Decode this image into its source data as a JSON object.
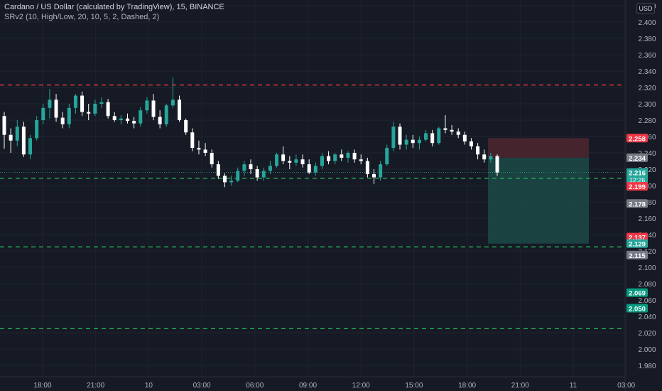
{
  "header": {
    "title": "Cardano / US Dollar (calculated by TradingView), 15, BINANCE",
    "indicator": "SRv2 (10, High/Low, 20, 10, 5, 2, Dashed, 2)"
  },
  "currency_button": "USD",
  "colors": {
    "background": "#161a25",
    "up": "#26a69a",
    "down": "#ffffff",
    "resistance": "#f23645",
    "support": "#22c55e",
    "stop_zone": "#4a2630",
    "target_zone": "#1b4a47"
  },
  "chart_data": {
    "type": "candlestick",
    "symbol": "ADAUSD",
    "ylim": [
      1.97,
      2.43
    ],
    "y_ticks": [
      "2.420",
      "2.400",
      "2.380",
      "2.360",
      "2.340",
      "2.320",
      "2.300",
      "2.280",
      "2.260",
      "2.240",
      "2.220",
      "2.200",
      "2.180",
      "2.160",
      "2.140",
      "2.120",
      "2.100",
      "2.080",
      "2.060",
      "2.040",
      "2.020",
      "2.000",
      "1.980"
    ],
    "x_ticks": [
      "18:00",
      "21:00",
      "10",
      "03:00",
      "06:00",
      "09:00",
      "12:00",
      "15:00",
      "18:00",
      "21:00",
      "11",
      "03:00"
    ],
    "horizontal_levels": [
      {
        "price": 2.323,
        "style": "dashed",
        "color": "#f23645"
      },
      {
        "price": 2.209,
        "style": "dashed",
        "color": "#22c55e"
      },
      {
        "price": 2.125,
        "style": "dashed",
        "color": "#22c55e"
      },
      {
        "price": 2.025,
        "style": "dashed",
        "color": "#22c55e"
      }
    ],
    "position": {
      "entry": 2.234,
      "stop": 2.258,
      "target": 2.129
    },
    "price_labels": [
      {
        "text": "2.258",
        "price": 2.258,
        "color": "#f23645"
      },
      {
        "text": "2.234",
        "price": 2.234,
        "color": "#787b86"
      },
      {
        "text": "2.216",
        "price": 2.216,
        "color": "#26a69a",
        "sub": "12:26"
      },
      {
        "text": "2.199",
        "price": 2.199,
        "color": "#f23645"
      },
      {
        "text": "2.178",
        "price": 2.178,
        "color": "#787b86"
      },
      {
        "text": "2.137",
        "price": 2.137,
        "color": "#f23645"
      },
      {
        "text": "2.129",
        "price": 2.129,
        "color": "#26a69a"
      },
      {
        "text": "2.115",
        "price": 2.115,
        "color": "#787b86"
      },
      {
        "text": "2.069",
        "price": 2.069,
        "color": "#089981"
      },
      {
        "text": "2.050",
        "price": 2.05,
        "color": "#089981"
      }
    ],
    "candles_ohlc": [
      [
        2.285,
        2.29,
        2.245,
        2.262
      ],
      [
        2.262,
        2.27,
        2.24,
        2.255
      ],
      [
        2.255,
        2.28,
        2.248,
        2.272
      ],
      [
        2.272,
        2.278,
        2.235,
        2.238
      ],
      [
        2.238,
        2.262,
        2.232,
        2.258
      ],
      [
        2.258,
        2.285,
        2.255,
        2.28
      ],
      [
        2.28,
        2.3,
        2.275,
        2.295
      ],
      [
        2.295,
        2.318,
        2.282,
        2.305
      ],
      [
        2.305,
        2.312,
        2.278,
        2.283
      ],
      [
        2.283,
        2.29,
        2.27,
        2.275
      ],
      [
        2.275,
        2.3,
        2.27,
        2.295
      ],
      [
        2.295,
        2.312,
        2.288,
        2.31
      ],
      [
        2.31,
        2.315,
        2.285,
        2.29
      ],
      [
        2.29,
        2.3,
        2.28,
        2.288
      ],
      [
        2.288,
        2.305,
        2.285,
        2.3
      ],
      [
        2.3,
        2.308,
        2.295,
        2.302
      ],
      [
        2.302,
        2.306,
        2.282,
        2.285
      ],
      [
        2.285,
        2.29,
        2.278,
        2.28
      ],
      [
        2.28,
        2.286,
        2.275,
        2.282
      ],
      [
        2.282,
        2.288,
        2.276,
        2.279
      ],
      [
        2.279,
        2.284,
        2.27,
        2.276
      ],
      [
        2.276,
        2.296,
        2.272,
        2.292
      ],
      [
        2.292,
        2.308,
        2.288,
        2.304
      ],
      [
        2.304,
        2.312,
        2.28,
        2.284
      ],
      [
        2.284,
        2.292,
        2.27,
        2.275
      ],
      [
        2.275,
        2.3,
        2.272,
        2.298
      ],
      [
        2.298,
        2.332,
        2.295,
        2.305
      ],
      [
        2.305,
        2.31,
        2.278,
        2.28
      ],
      [
        2.28,
        2.282,
        2.262,
        2.265
      ],
      [
        2.265,
        2.27,
        2.242,
        2.246
      ],
      [
        2.246,
        2.255,
        2.238,
        2.244
      ],
      [
        2.244,
        2.252,
        2.236,
        2.24
      ],
      [
        2.24,
        2.244,
        2.222,
        2.226
      ],
      [
        2.226,
        2.23,
        2.208,
        2.212
      ],
      [
        2.212,
        2.215,
        2.198,
        2.204
      ],
      [
        2.204,
        2.212,
        2.2,
        2.206
      ],
      [
        2.206,
        2.222,
        2.204,
        2.218
      ],
      [
        2.218,
        2.23,
        2.212,
        2.226
      ],
      [
        2.226,
        2.232,
        2.214,
        2.22
      ],
      [
        2.22,
        2.224,
        2.206,
        2.21
      ],
      [
        2.21,
        2.222,
        2.206,
        2.218
      ],
      [
        2.218,
        2.23,
        2.214,
        2.224
      ],
      [
        2.224,
        2.24,
        2.222,
        2.238
      ],
      [
        2.238,
        2.248,
        2.226,
        2.23
      ],
      [
        2.23,
        2.236,
        2.22,
        2.228
      ],
      [
        2.228,
        2.238,
        2.224,
        2.232
      ],
      [
        2.232,
        2.238,
        2.222,
        2.226
      ],
      [
        2.226,
        2.232,
        2.214,
        2.216
      ],
      [
        2.216,
        2.228,
        2.212,
        2.224
      ],
      [
        2.224,
        2.24,
        2.22,
        2.236
      ],
      [
        2.236,
        2.242,
        2.226,
        2.23
      ],
      [
        2.23,
        2.24,
        2.226,
        2.238
      ],
      [
        2.238,
        2.244,
        2.23,
        2.234
      ],
      [
        2.234,
        2.242,
        2.228,
        2.24
      ],
      [
        2.24,
        2.244,
        2.228,
        2.232
      ],
      [
        2.232,
        2.238,
        2.226,
        2.23
      ],
      [
        2.23,
        2.234,
        2.21,
        2.214
      ],
      [
        2.214,
        2.22,
        2.202,
        2.21
      ],
      [
        2.21,
        2.23,
        2.206,
        2.226
      ],
      [
        2.226,
        2.25,
        2.224,
        2.246
      ],
      [
        2.246,
        2.278,
        2.242,
        2.272
      ],
      [
        2.272,
        2.276,
        2.244,
        2.25
      ],
      [
        2.25,
        2.262,
        2.244,
        2.256
      ],
      [
        2.256,
        2.262,
        2.246,
        2.252
      ],
      [
        2.252,
        2.26,
        2.244,
        2.256
      ],
      [
        2.256,
        2.268,
        2.254,
        2.264
      ],
      [
        2.264,
        2.268,
        2.248,
        2.252
      ],
      [
        2.252,
        2.272,
        2.25,
        2.27
      ],
      [
        2.27,
        2.286,
        2.264,
        2.268
      ],
      [
        2.268,
        2.274,
        2.262,
        2.266
      ],
      [
        2.266,
        2.27,
        2.258,
        2.262
      ],
      [
        2.262,
        2.266,
        2.25,
        2.254
      ],
      [
        2.254,
        2.258,
        2.244,
        2.248
      ],
      [
        2.248,
        2.252,
        2.232,
        2.238
      ],
      [
        2.238,
        2.244,
        2.228,
        2.232
      ],
      [
        2.232,
        2.24,
        2.228,
        2.236
      ],
      [
        2.236,
        2.238,
        2.212,
        2.216
      ]
    ]
  }
}
